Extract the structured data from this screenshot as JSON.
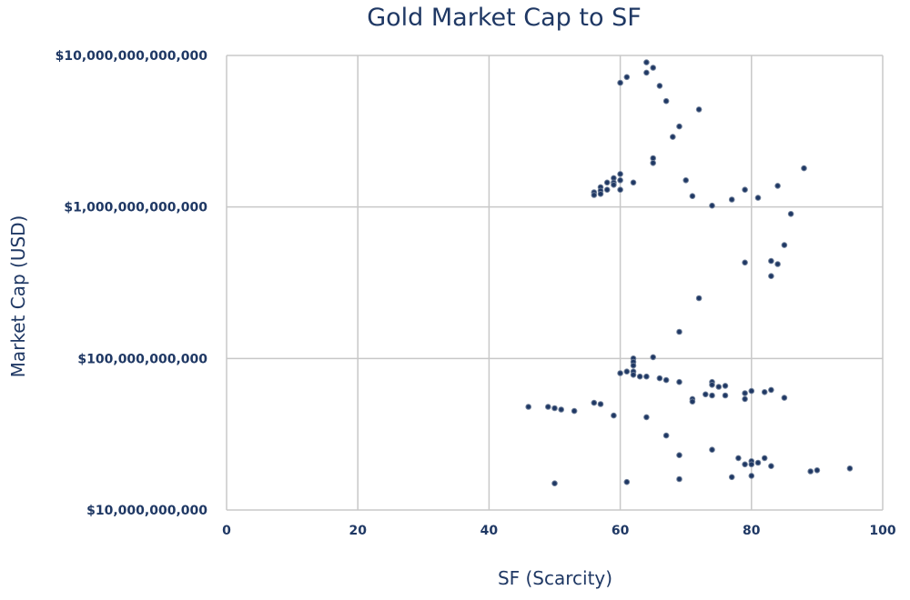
{
  "chart_data": {
    "type": "scatter",
    "title": "Gold Market Cap to SF",
    "xlabel": "SF (Scarcity)",
    "ylabel": "Market Cap (USD)",
    "xlim": [
      0,
      100
    ],
    "ylim": [
      10000000000,
      10000000000000
    ],
    "yscale": "log",
    "grid": true,
    "x_ticks": [
      0,
      20,
      40,
      60,
      80,
      100
    ],
    "x_tick_labels": [
      "0",
      "20",
      "40",
      "60",
      "80",
      "100"
    ],
    "y_ticks": [
      10000000000,
      100000000000,
      1000000000000,
      10000000000000
    ],
    "y_tick_labels": [
      "$10,000,000,000",
      "$100,000,000,000",
      "$1,000,000,000,000",
      "$10,000,000,000,000"
    ],
    "colors": {
      "marker": "#1f3864",
      "text": "#1f3864",
      "grid": "#c8c8c8"
    },
    "points": [
      [
        64,
        9000000000000
      ],
      [
        65,
        8300000000000
      ],
      [
        64,
        7700000000000
      ],
      [
        61,
        7200000000000
      ],
      [
        60,
        6600000000000
      ],
      [
        66,
        6300000000000
      ],
      [
        67,
        5000000000000
      ],
      [
        72,
        4400000000000
      ],
      [
        69,
        3400000000000
      ],
      [
        68,
        2900000000000
      ],
      [
        65,
        2100000000000
      ],
      [
        65,
        1950000000000
      ],
      [
        88,
        1800000000000
      ],
      [
        60,
        1650000000000
      ],
      [
        59,
        1550000000000
      ],
      [
        60,
        1500000000000
      ],
      [
        58,
        1450000000000
      ],
      [
        59,
        1450000000000
      ],
      [
        62,
        1450000000000
      ],
      [
        70,
        1500000000000
      ],
      [
        57,
        1350000000000
      ],
      [
        59,
        1400000000000
      ],
      [
        58,
        1300000000000
      ],
      [
        60,
        1300000000000
      ],
      [
        84,
        1380000000000
      ],
      [
        57,
        1280000000000
      ],
      [
        56,
        1250000000000
      ],
      [
        57,
        1220000000000
      ],
      [
        56,
        1200000000000
      ],
      [
        79,
        1300000000000
      ],
      [
        71,
        1180000000000
      ],
      [
        81,
        1150000000000
      ],
      [
        77,
        1120000000000
      ],
      [
        74,
        1020000000000
      ],
      [
        86,
        900000000000
      ],
      [
        85,
        560000000000
      ],
      [
        79,
        430000000000
      ],
      [
        83,
        440000000000
      ],
      [
        84,
        420000000000
      ],
      [
        83,
        350000000000
      ],
      [
        72,
        250000000000
      ],
      [
        69,
        150000000000
      ],
      [
        65,
        102000000000
      ],
      [
        62,
        100000000000
      ],
      [
        62,
        95000000000
      ],
      [
        62,
        90000000000
      ],
      [
        61,
        82000000000
      ],
      [
        62,
        82000000000
      ],
      [
        60,
        80000000000
      ],
      [
        62,
        78000000000
      ],
      [
        63,
        76000000000
      ],
      [
        64,
        76000000000
      ],
      [
        66,
        74000000000
      ],
      [
        67,
        72000000000
      ],
      [
        69,
        70000000000
      ],
      [
        74,
        70000000000
      ],
      [
        74,
        67000000000
      ],
      [
        75,
        65000000000
      ],
      [
        76,
        66000000000
      ],
      [
        80,
        61000000000
      ],
      [
        82,
        60000000000
      ],
      [
        83,
        62000000000
      ],
      [
        73,
        58000000000
      ],
      [
        74,
        57000000000
      ],
      [
        76,
        57000000000
      ],
      [
        79,
        59000000000
      ],
      [
        79,
        54000000000
      ],
      [
        85,
        55000000000
      ],
      [
        71,
        54000000000
      ],
      [
        71,
        52000000000
      ],
      [
        56,
        51000000000
      ],
      [
        57,
        50000000000
      ],
      [
        46,
        48000000000
      ],
      [
        49,
        48000000000
      ],
      [
        50,
        47000000000
      ],
      [
        51,
        46000000000
      ],
      [
        53,
        45000000000
      ],
      [
        59,
        42000000000
      ],
      [
        64,
        41000000000
      ],
      [
        67,
        31000000000
      ],
      [
        74,
        25000000000
      ],
      [
        69,
        23000000000
      ],
      [
        78,
        22000000000
      ],
      [
        82,
        22000000000
      ],
      [
        80,
        21000000000
      ],
      [
        81,
        20500000000
      ],
      [
        79,
        20000000000
      ],
      [
        80,
        20000000000
      ],
      [
        83,
        19500000000
      ],
      [
        89,
        18000000000
      ],
      [
        90,
        18300000000
      ],
      [
        95,
        18800000000
      ],
      [
        77,
        16500000000
      ],
      [
        80,
        16800000000
      ],
      [
        69,
        16000000000
      ],
      [
        61,
        15300000000
      ],
      [
        50,
        15000000000
      ]
    ]
  }
}
